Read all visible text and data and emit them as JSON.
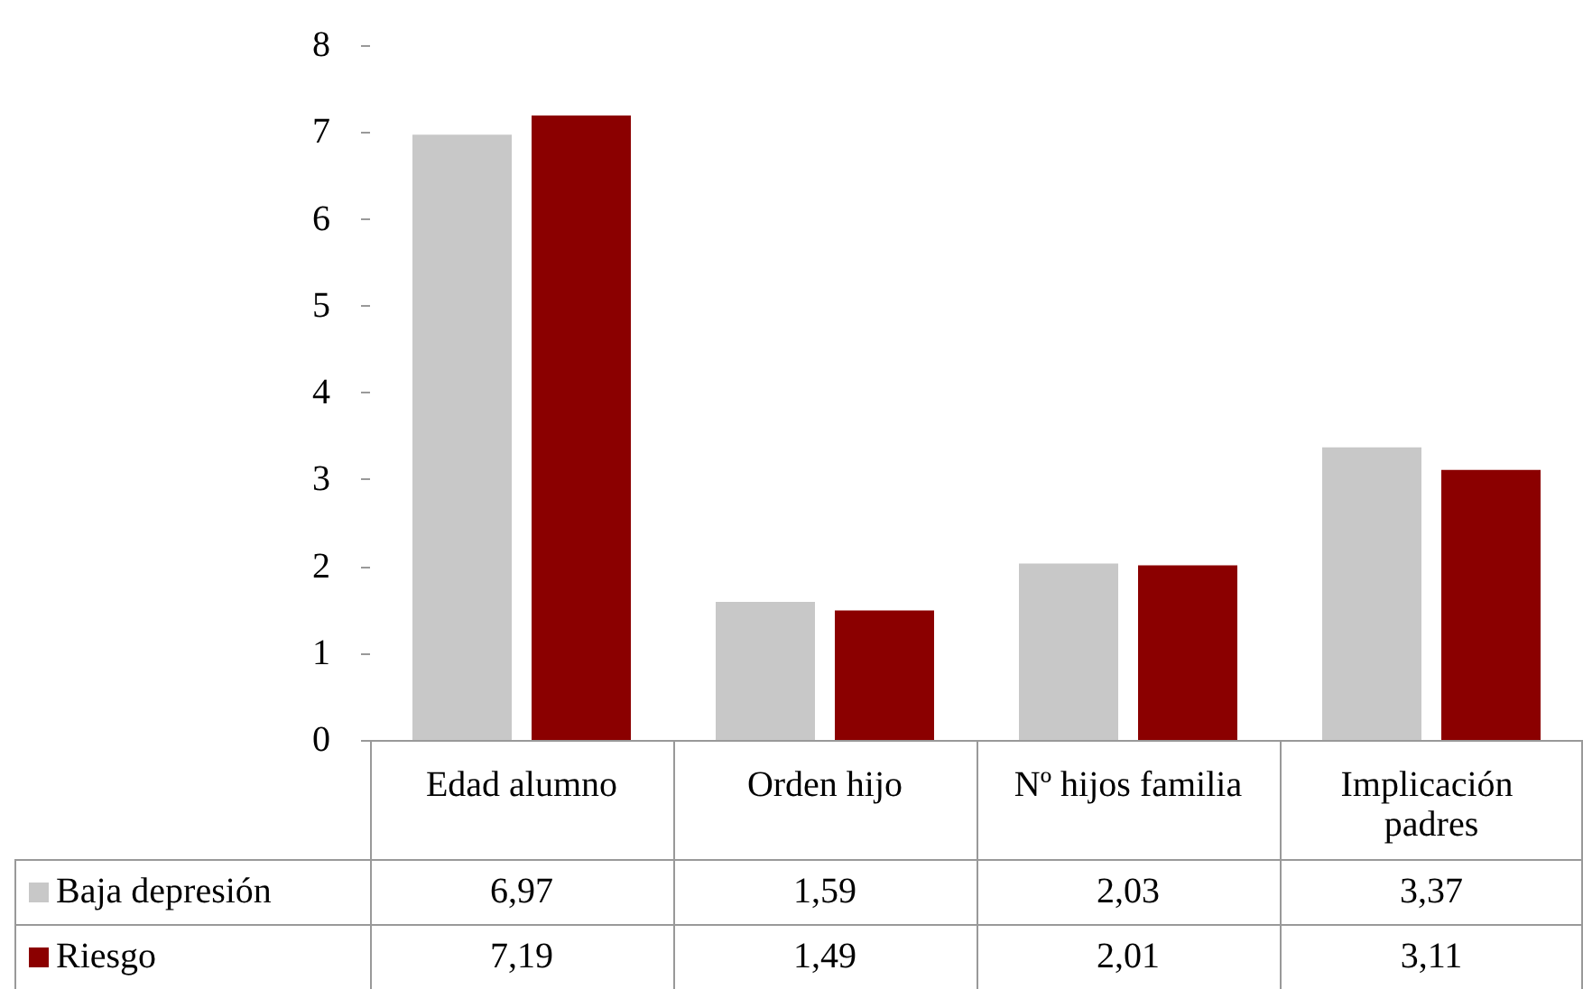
{
  "chart_data": {
    "type": "bar",
    "categories": [
      "Edad alumno",
      "Orden hijo",
      "Nº hijos familia",
      "Implicación padres"
    ],
    "series": [
      {
        "name": "Baja depresión",
        "color": "#c8c8c8",
        "values": [
          6.97,
          1.59,
          2.03,
          3.37
        ],
        "value_labels": [
          "6,97",
          "1,59",
          "2,03",
          "3,37"
        ]
      },
      {
        "name": "Riesgo",
        "color": "#8b0000",
        "values": [
          7.19,
          1.49,
          2.01,
          3.11
        ],
        "value_labels": [
          "7,19",
          "1,49",
          "2,01",
          "3,11"
        ]
      }
    ],
    "ylim": [
      0,
      8
    ],
    "yticks": [
      0,
      1,
      2,
      3,
      4,
      5,
      6,
      7,
      8
    ],
    "grid": false,
    "legend": "bottom"
  }
}
